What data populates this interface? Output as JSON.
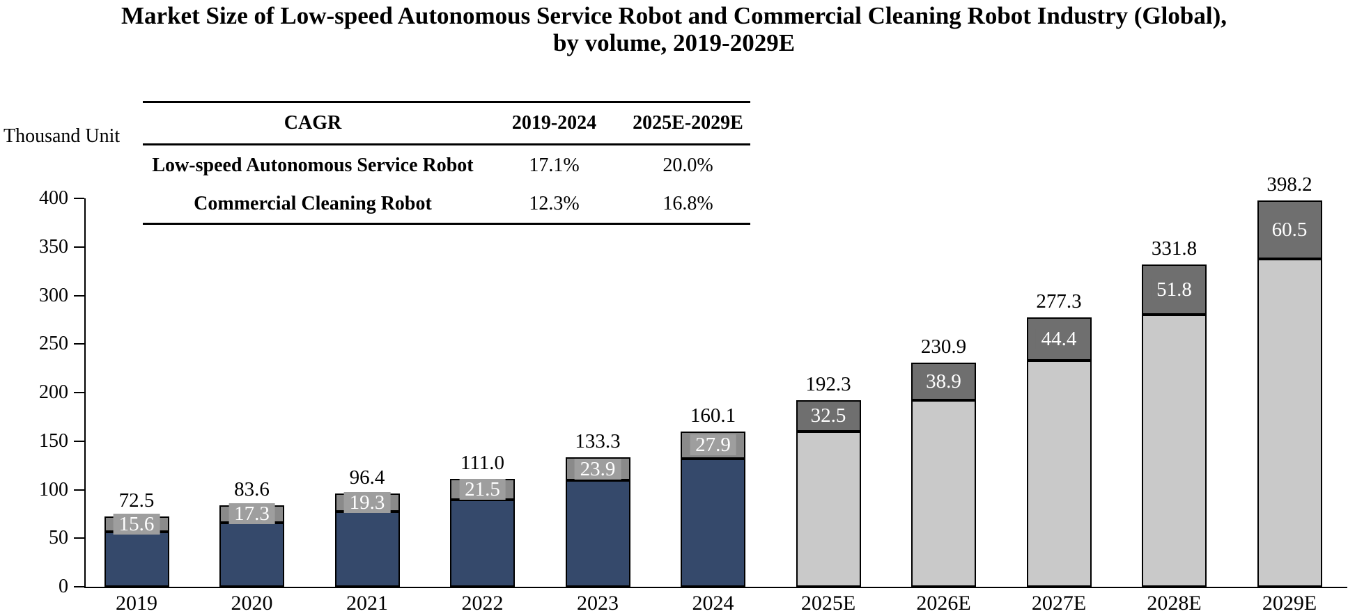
{
  "title": {
    "line1": "Market Size of Low-speed Autonomous Service Robot and Commercial Cleaning Robot Industry (Global),",
    "line2": "by volume, 2019-2029E"
  },
  "cagr_table": {
    "header": [
      "CAGR",
      "2019-2024",
      "2025E-2029E"
    ],
    "rows": [
      {
        "label": "Low-speed Autonomous Service Robot",
        "values": [
          "17.1%",
          "20.0%"
        ]
      },
      {
        "label": "Commercial Cleaning Robot",
        "values": [
          "12.3%",
          "16.8%"
        ]
      }
    ]
  },
  "chart_data": {
    "type": "bar",
    "stacked": true,
    "y_axis_label": "Thousand Unit",
    "categories": [
      "2019",
      "2020",
      "2021",
      "2022",
      "2023",
      "2024",
      "2025E",
      "2026E",
      "2027E",
      "2028E",
      "2029E"
    ],
    "totals": [
      "72.5",
      "83.6",
      "96.4",
      "111.0",
      "133.3",
      "160.1",
      "192.3",
      "230.9",
      "277.3",
      "331.8",
      "398.2"
    ],
    "series": [
      {
        "name": "Low-speed Autonomous Service Robot",
        "position": "bottom",
        "labels_visible": false
      },
      {
        "name": "Commercial Cleaning Robot",
        "position": "top",
        "labels_visible": true,
        "values": [
          "15.6",
          "17.3",
          "19.3",
          "21.5",
          "23.9",
          "27.9",
          "32.5",
          "38.9",
          "44.4",
          "51.8",
          "60.5"
        ]
      }
    ],
    "historical_categories": 6,
    "ylim": [
      0,
      400
    ],
    "y_ticks": [
      "0",
      "50",
      "100",
      "150",
      "200",
      "250",
      "300",
      "350",
      "400"
    ],
    "grid": false,
    "legend": "none",
    "colors": {
      "service_robot_historical": "#35496B",
      "service_robot_forecast": "#C9C9C9",
      "cleaning_robot_historical": "#8A8A8A",
      "cleaning_robot_historical_label_bg": "#9E9E9E",
      "cleaning_robot_forecast": "#6F6F6F",
      "cleaning_robot_forecast_label_bg": "#6F6F6F",
      "bar_border": "#000000",
      "segment_label_text": "#FFFFFF",
      "axis": "#000000"
    }
  }
}
